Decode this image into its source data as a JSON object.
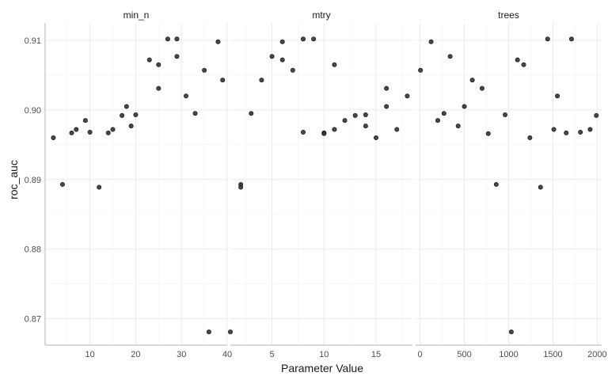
{
  "chart_data": {
    "type": "scatter",
    "xlabel": "Parameter Value",
    "ylabel": "roc_auc",
    "ylim": [
      0.8662,
      0.9125
    ],
    "y_ticks": [
      0.87,
      0.88,
      0.89,
      0.9,
      0.91
    ],
    "y_tick_labels": [
      "0.87",
      "0.88",
      "0.89",
      "0.90",
      "0.91"
    ],
    "grid": true,
    "facets": [
      {
        "title": "min_n",
        "xlim": [
          0.2,
          40
        ],
        "x_ticks": [
          10,
          20,
          30,
          40
        ],
        "x_tick_labels": [
          "10",
          "20",
          "30",
          "40"
        ],
        "points": [
          {
            "x": 2,
            "y": 0.896
          },
          {
            "x": 4,
            "y": 0.8893
          },
          {
            "x": 6,
            "y": 0.8967
          },
          {
            "x": 7,
            "y": 0.8972
          },
          {
            "x": 9,
            "y": 0.8985
          },
          {
            "x": 10,
            "y": 0.8968
          },
          {
            "x": 12,
            "y": 0.8889
          },
          {
            "x": 14,
            "y": 0.8967
          },
          {
            "x": 15,
            "y": 0.8972
          },
          {
            "x": 17,
            "y": 0.8992
          },
          {
            "x": 18,
            "y": 0.9005
          },
          {
            "x": 19,
            "y": 0.8977
          },
          {
            "x": 20,
            "y": 0.8993
          },
          {
            "x": 23,
            "y": 0.9072
          },
          {
            "x": 25,
            "y": 0.9031
          },
          {
            "x": 25,
            "y": 0.9065
          },
          {
            "x": 27,
            "y": 0.9102
          },
          {
            "x": 29,
            "y": 0.9102
          },
          {
            "x": 29,
            "y": 0.9077
          },
          {
            "x": 31,
            "y": 0.902
          },
          {
            "x": 33,
            "y": 0.8995
          },
          {
            "x": 35,
            "y": 0.9057
          },
          {
            "x": 36,
            "y": 0.8681
          },
          {
            "x": 38,
            "y": 0.9098
          },
          {
            "x": 39,
            "y": 0.9043
          }
        ]
      },
      {
        "title": "mtry",
        "xlim": [
          1,
          18.5
        ],
        "x_ticks": [
          5,
          10,
          15
        ],
        "x_tick_labels": [
          "5",
          "10",
          "15"
        ],
        "points": [
          {
            "x": 1,
            "y": 0.8681
          },
          {
            "x": 2,
            "y": 0.8893
          },
          {
            "x": 2,
            "y": 0.8889
          },
          {
            "x": 3,
            "y": 0.8995
          },
          {
            "x": 4,
            "y": 0.9043
          },
          {
            "x": 5,
            "y": 0.9077
          },
          {
            "x": 6,
            "y": 0.9072
          },
          {
            "x": 6,
            "y": 0.9098
          },
          {
            "x": 7,
            "y": 0.9057
          },
          {
            "x": 8,
            "y": 0.9102
          },
          {
            "x": 8,
            "y": 0.8968
          },
          {
            "x": 9,
            "y": 0.9102
          },
          {
            "x": 10,
            "y": 0.8967
          },
          {
            "x": 10,
            "y": 0.8966
          },
          {
            "x": 11,
            "y": 0.9065
          },
          {
            "x": 11,
            "y": 0.8972
          },
          {
            "x": 12,
            "y": 0.8985
          },
          {
            "x": 13,
            "y": 0.8992
          },
          {
            "x": 14,
            "y": 0.8993
          },
          {
            "x": 14,
            "y": 0.8977
          },
          {
            "x": 15,
            "y": 0.896
          },
          {
            "x": 16,
            "y": 0.9031
          },
          {
            "x": 16,
            "y": 0.9005
          },
          {
            "x": 17,
            "y": 0.8972
          },
          {
            "x": 18,
            "y": 0.902
          }
        ]
      },
      {
        "title": "trees",
        "xlim": [
          -50,
          2050
        ],
        "x_ticks": [
          0,
          500,
          1000,
          1500,
          2000
        ],
        "x_tick_labels": [
          "0",
          "500",
          "1000",
          "1500",
          "2000"
        ],
        "points": [
          {
            "x": 5,
            "y": 0.9057
          },
          {
            "x": 125,
            "y": 0.9098
          },
          {
            "x": 200,
            "y": 0.8985
          },
          {
            "x": 270,
            "y": 0.8995
          },
          {
            "x": 340,
            "y": 0.9077
          },
          {
            "x": 430,
            "y": 0.8977
          },
          {
            "x": 500,
            "y": 0.9005
          },
          {
            "x": 590,
            "y": 0.9043
          },
          {
            "x": 700,
            "y": 0.9031
          },
          {
            "x": 770,
            "y": 0.8966
          },
          {
            "x": 860,
            "y": 0.8893
          },
          {
            "x": 960,
            "y": 0.8993
          },
          {
            "x": 1030,
            "y": 0.8681
          },
          {
            "x": 1100,
            "y": 0.9072
          },
          {
            "x": 1170,
            "y": 0.9065
          },
          {
            "x": 1240,
            "y": 0.896
          },
          {
            "x": 1360,
            "y": 0.8889
          },
          {
            "x": 1440,
            "y": 0.9102
          },
          {
            "x": 1510,
            "y": 0.8972
          },
          {
            "x": 1550,
            "y": 0.902
          },
          {
            "x": 1650,
            "y": 0.8967
          },
          {
            "x": 1710,
            "y": 0.9102
          },
          {
            "x": 1810,
            "y": 0.8968
          },
          {
            "x": 1920,
            "y": 0.8972
          },
          {
            "x": 1990,
            "y": 0.8992
          }
        ]
      }
    ]
  }
}
